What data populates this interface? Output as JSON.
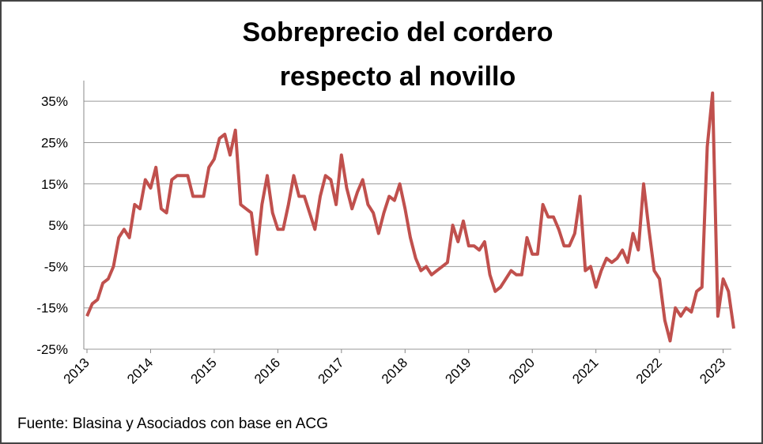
{
  "chart_data": {
    "type": "line",
    "title": [
      "Sobreprecio del cordero",
      "respecto al novillo"
    ],
    "source": "Fuente: Blasina y Asociados con base en ACG",
    "categories": [
      "2013",
      null,
      null,
      null,
      null,
      null,
      null,
      null,
      null,
      null,
      null,
      null,
      "2014",
      null,
      null,
      null,
      null,
      null,
      null,
      null,
      null,
      null,
      null,
      null,
      "2015",
      null,
      null,
      null,
      null,
      null,
      null,
      null,
      null,
      null,
      null,
      null,
      "2016",
      null,
      null,
      null,
      null,
      null,
      null,
      null,
      null,
      null,
      null,
      null,
      "2017",
      null,
      null,
      null,
      null,
      null,
      null,
      null,
      null,
      null,
      null,
      null,
      "2018",
      null,
      null,
      null,
      null,
      null,
      null,
      null,
      null,
      null,
      null,
      null,
      "2019",
      null,
      null,
      null,
      null,
      null,
      null,
      null,
      null,
      null,
      null,
      null,
      "2020",
      null,
      null,
      null,
      null,
      null,
      null,
      null,
      null,
      null,
      null,
      null,
      "2021",
      null,
      null,
      null,
      null,
      null,
      null,
      null,
      null,
      null,
      null,
      null,
      "2022",
      null,
      null,
      null,
      null,
      null,
      null,
      null,
      null,
      null,
      null,
      null,
      "2023",
      null,
      null
    ],
    "series": [
      {
        "color": "#c0504d",
        "values": [
          -17,
          -14,
          -13,
          -9,
          -8,
          -5,
          2,
          4,
          2,
          10,
          9,
          16,
          14,
          19,
          9,
          8,
          16,
          17,
          17,
          17,
          12,
          12,
          12,
          19,
          21,
          26,
          27,
          22,
          28,
          10,
          9,
          8,
          -2,
          10,
          17,
          8,
          4,
          4,
          10,
          17,
          12,
          12,
          8,
          4,
          12,
          17,
          16,
          10,
          22,
          14,
          9,
          13,
          16,
          10,
          8,
          3,
          8,
          12,
          11,
          15,
          9,
          2,
          -3,
          -6,
          -5,
          -7,
          -6,
          -5,
          -4,
          5,
          1,
          6,
          0,
          0,
          -1,
          1,
          -7,
          -11,
          -10,
          -8,
          -6,
          -7,
          -7,
          2,
          -2,
          -2,
          10,
          7,
          7,
          4,
          0,
          0,
          3,
          12,
          -6,
          -5,
          -10,
          -6,
          -3,
          -4,
          -3,
          -1,
          -4,
          3,
          -1,
          15,
          4,
          -6,
          -8,
          -18,
          -23,
          -15,
          -17,
          -15,
          -16,
          -11,
          -10,
          24,
          37,
          -17,
          -8,
          -11,
          -20
        ]
      }
    ],
    "ylim": [
      -25,
      40
    ],
    "yticks": [
      {
        "value": -25,
        "label": "-25%"
      },
      {
        "value": -15,
        "label": "-15%"
      },
      {
        "value": -5,
        "label": "-5%"
      },
      {
        "value": 5,
        "label": "5%"
      },
      {
        "value": 15,
        "label": "15%"
      },
      {
        "value": 25,
        "label": "25%"
      },
      {
        "value": 35,
        "label": "35%"
      }
    ],
    "grid": true
  }
}
